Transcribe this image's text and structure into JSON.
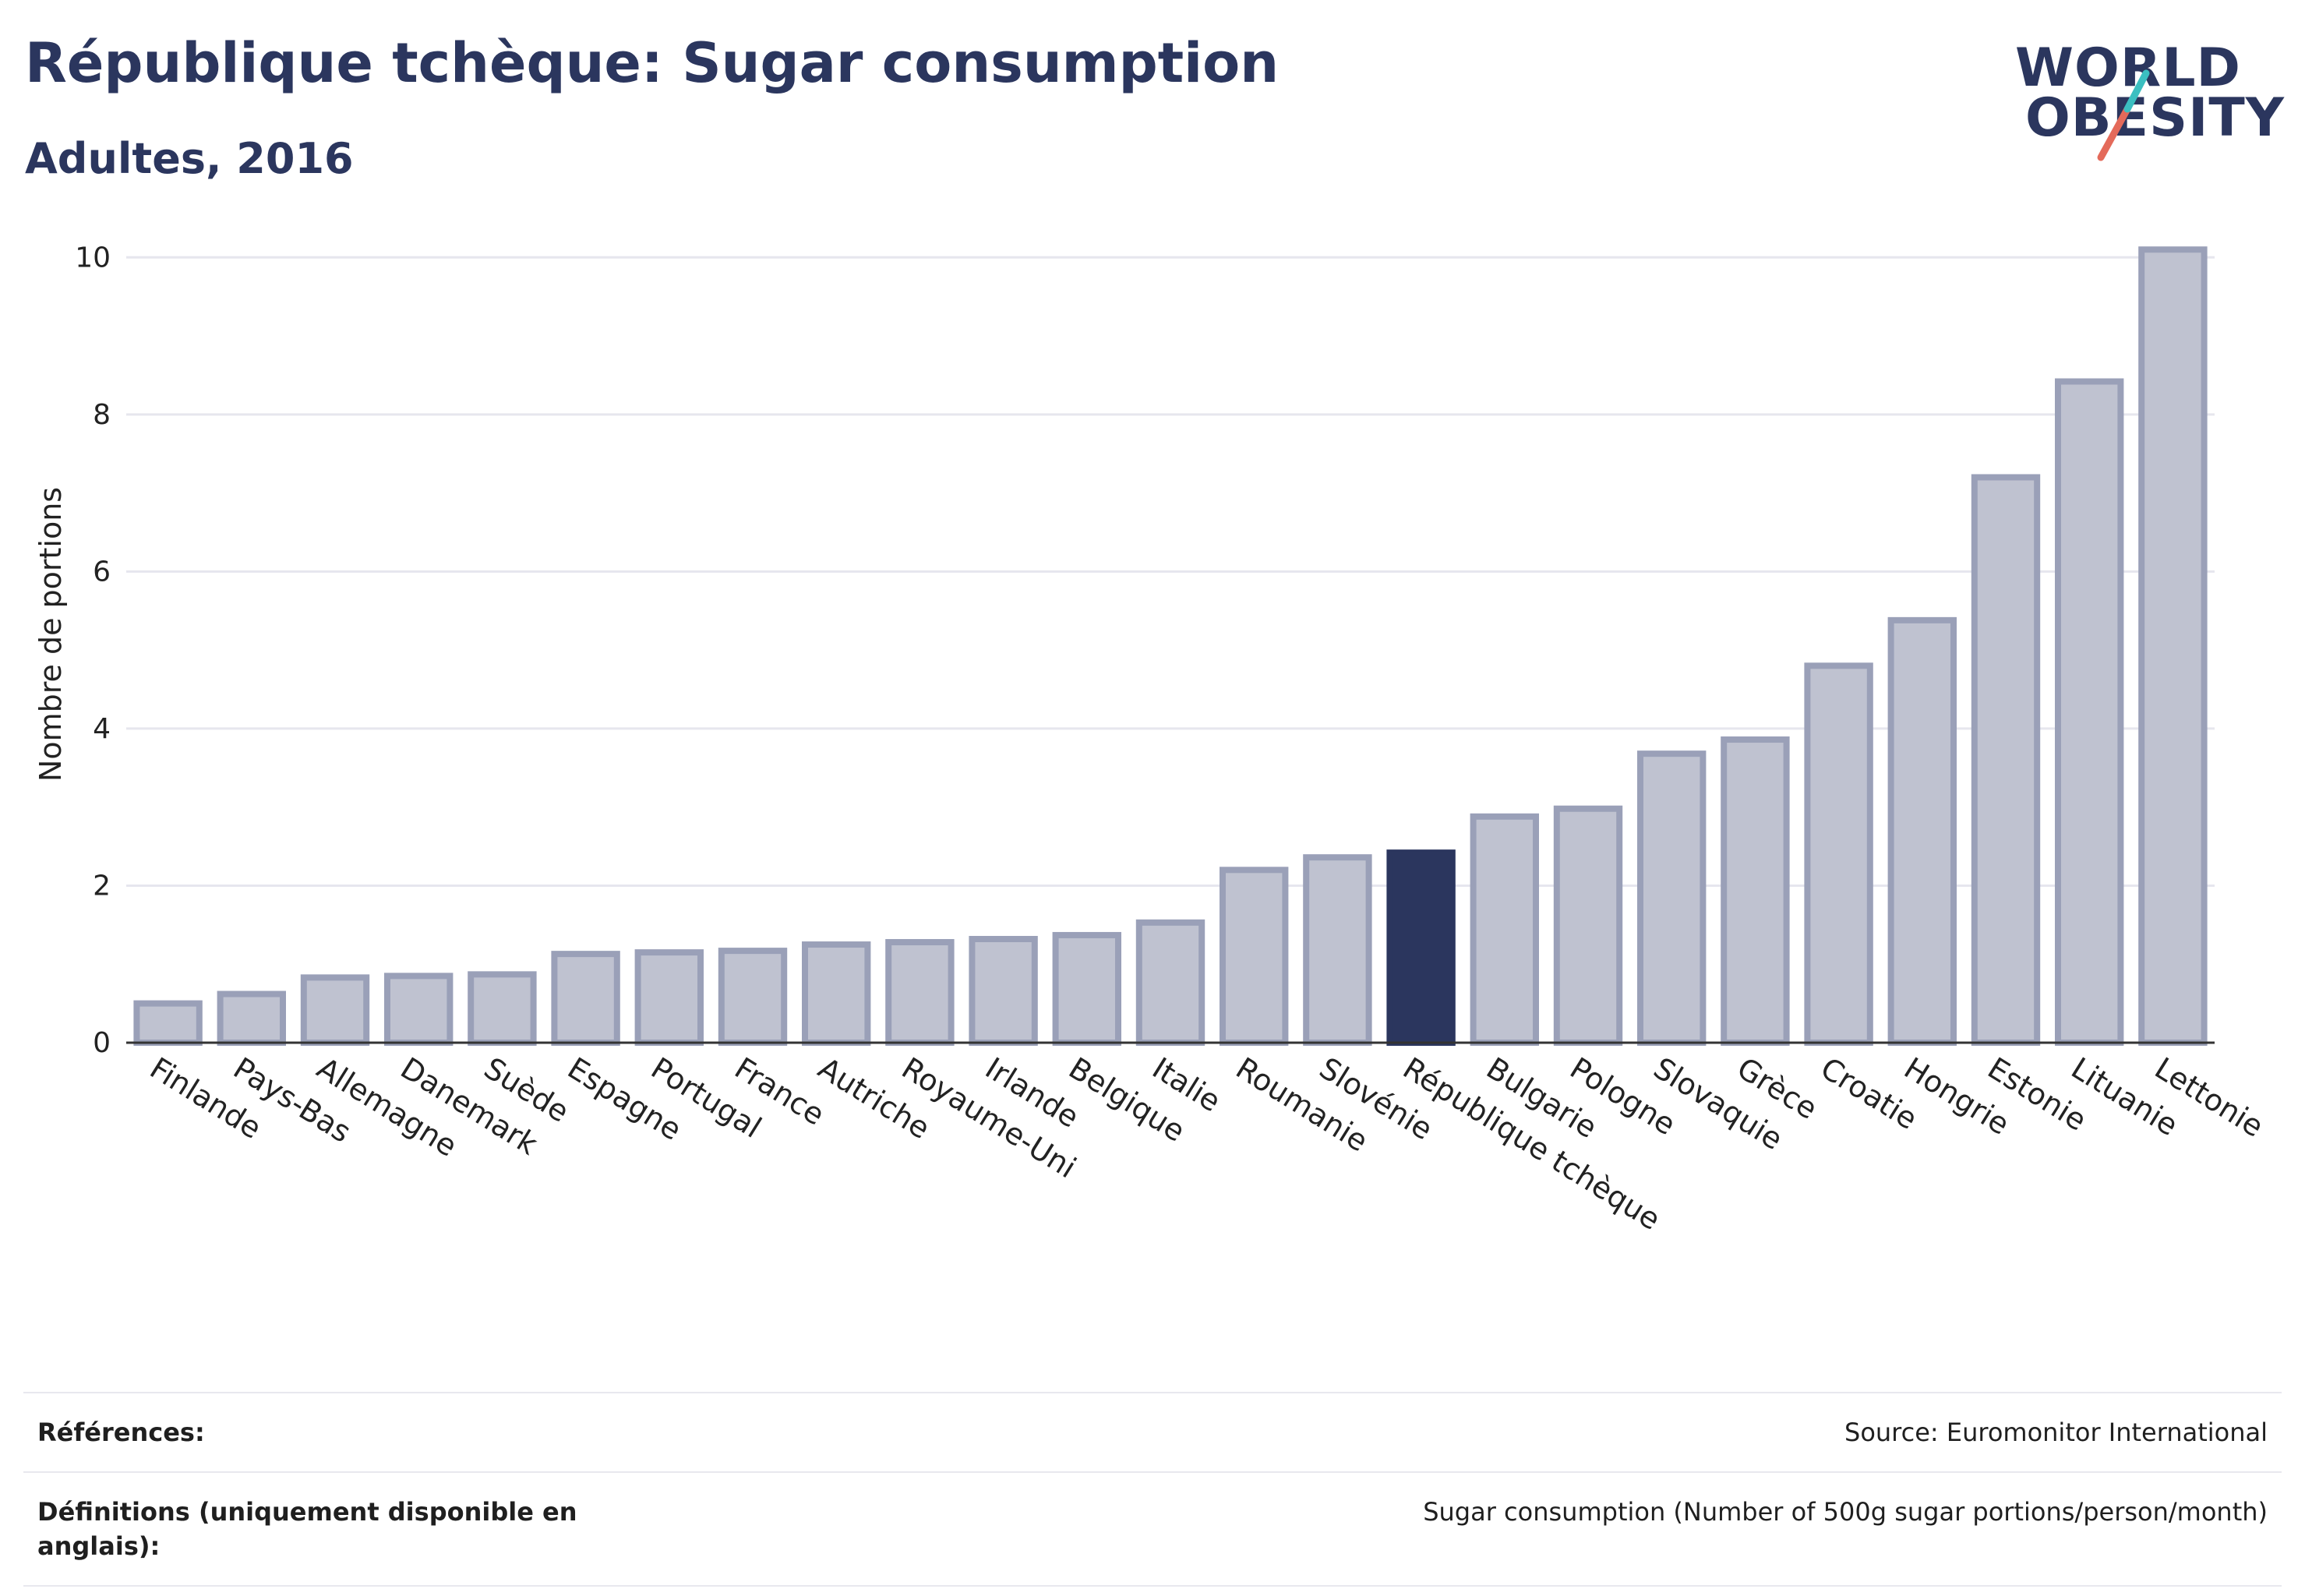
{
  "header": {
    "title": "République tchèque: Sugar consumption",
    "subtitle": "Adultes, 2016"
  },
  "logo": {
    "line1": "WORLD",
    "line2": "OBESITY"
  },
  "colors": {
    "bar": "#bfc2d0",
    "bar_outline": "#9aa0b8",
    "highlight": "#2b365e",
    "grid": "#e6e6ee",
    "logo_teal": "#3bbfc1",
    "logo_red": "#e46a5a"
  },
  "chart_data": {
    "type": "bar",
    "title": "République tchèque: Sugar consumption",
    "subtitle": "Adultes, 2016",
    "xlabel": "",
    "ylabel": "Nombre de portions",
    "ylim": [
      0,
      10.4
    ],
    "yticks": [
      0,
      2,
      4,
      6,
      8,
      10
    ],
    "grid": true,
    "highlight": "République tchèque",
    "categories": [
      "Finlande",
      "Pays-Bas",
      "Allemagne",
      "Danemark",
      "Suède",
      "Espagne",
      "Portugal",
      "France",
      "Autriche",
      "Royaume-Uni",
      "Irlande",
      "Belgique",
      "Italie",
      "Roumanie",
      "Slovénie",
      "République tchèque",
      "Bulgarie",
      "Pologne",
      "Slovaquie",
      "Grèce",
      "Croatie",
      "Hongrie",
      "Estonie",
      "Lituanie",
      "Lettonie"
    ],
    "values": [
      0.5,
      0.62,
      0.83,
      0.85,
      0.87,
      1.13,
      1.15,
      1.17,
      1.25,
      1.28,
      1.32,
      1.37,
      1.53,
      2.2,
      2.36,
      2.42,
      2.88,
      2.98,
      3.68,
      3.86,
      4.8,
      5.38,
      7.2,
      8.42,
      10.1
    ]
  },
  "footer": {
    "references_label": "Références:",
    "references_value": "Source: Euromonitor International",
    "definitions_label": "Définitions (uniquement disponible en anglais):",
    "definitions_value": "Sugar consumption (Number of 500g sugar portions/person/month)"
  }
}
